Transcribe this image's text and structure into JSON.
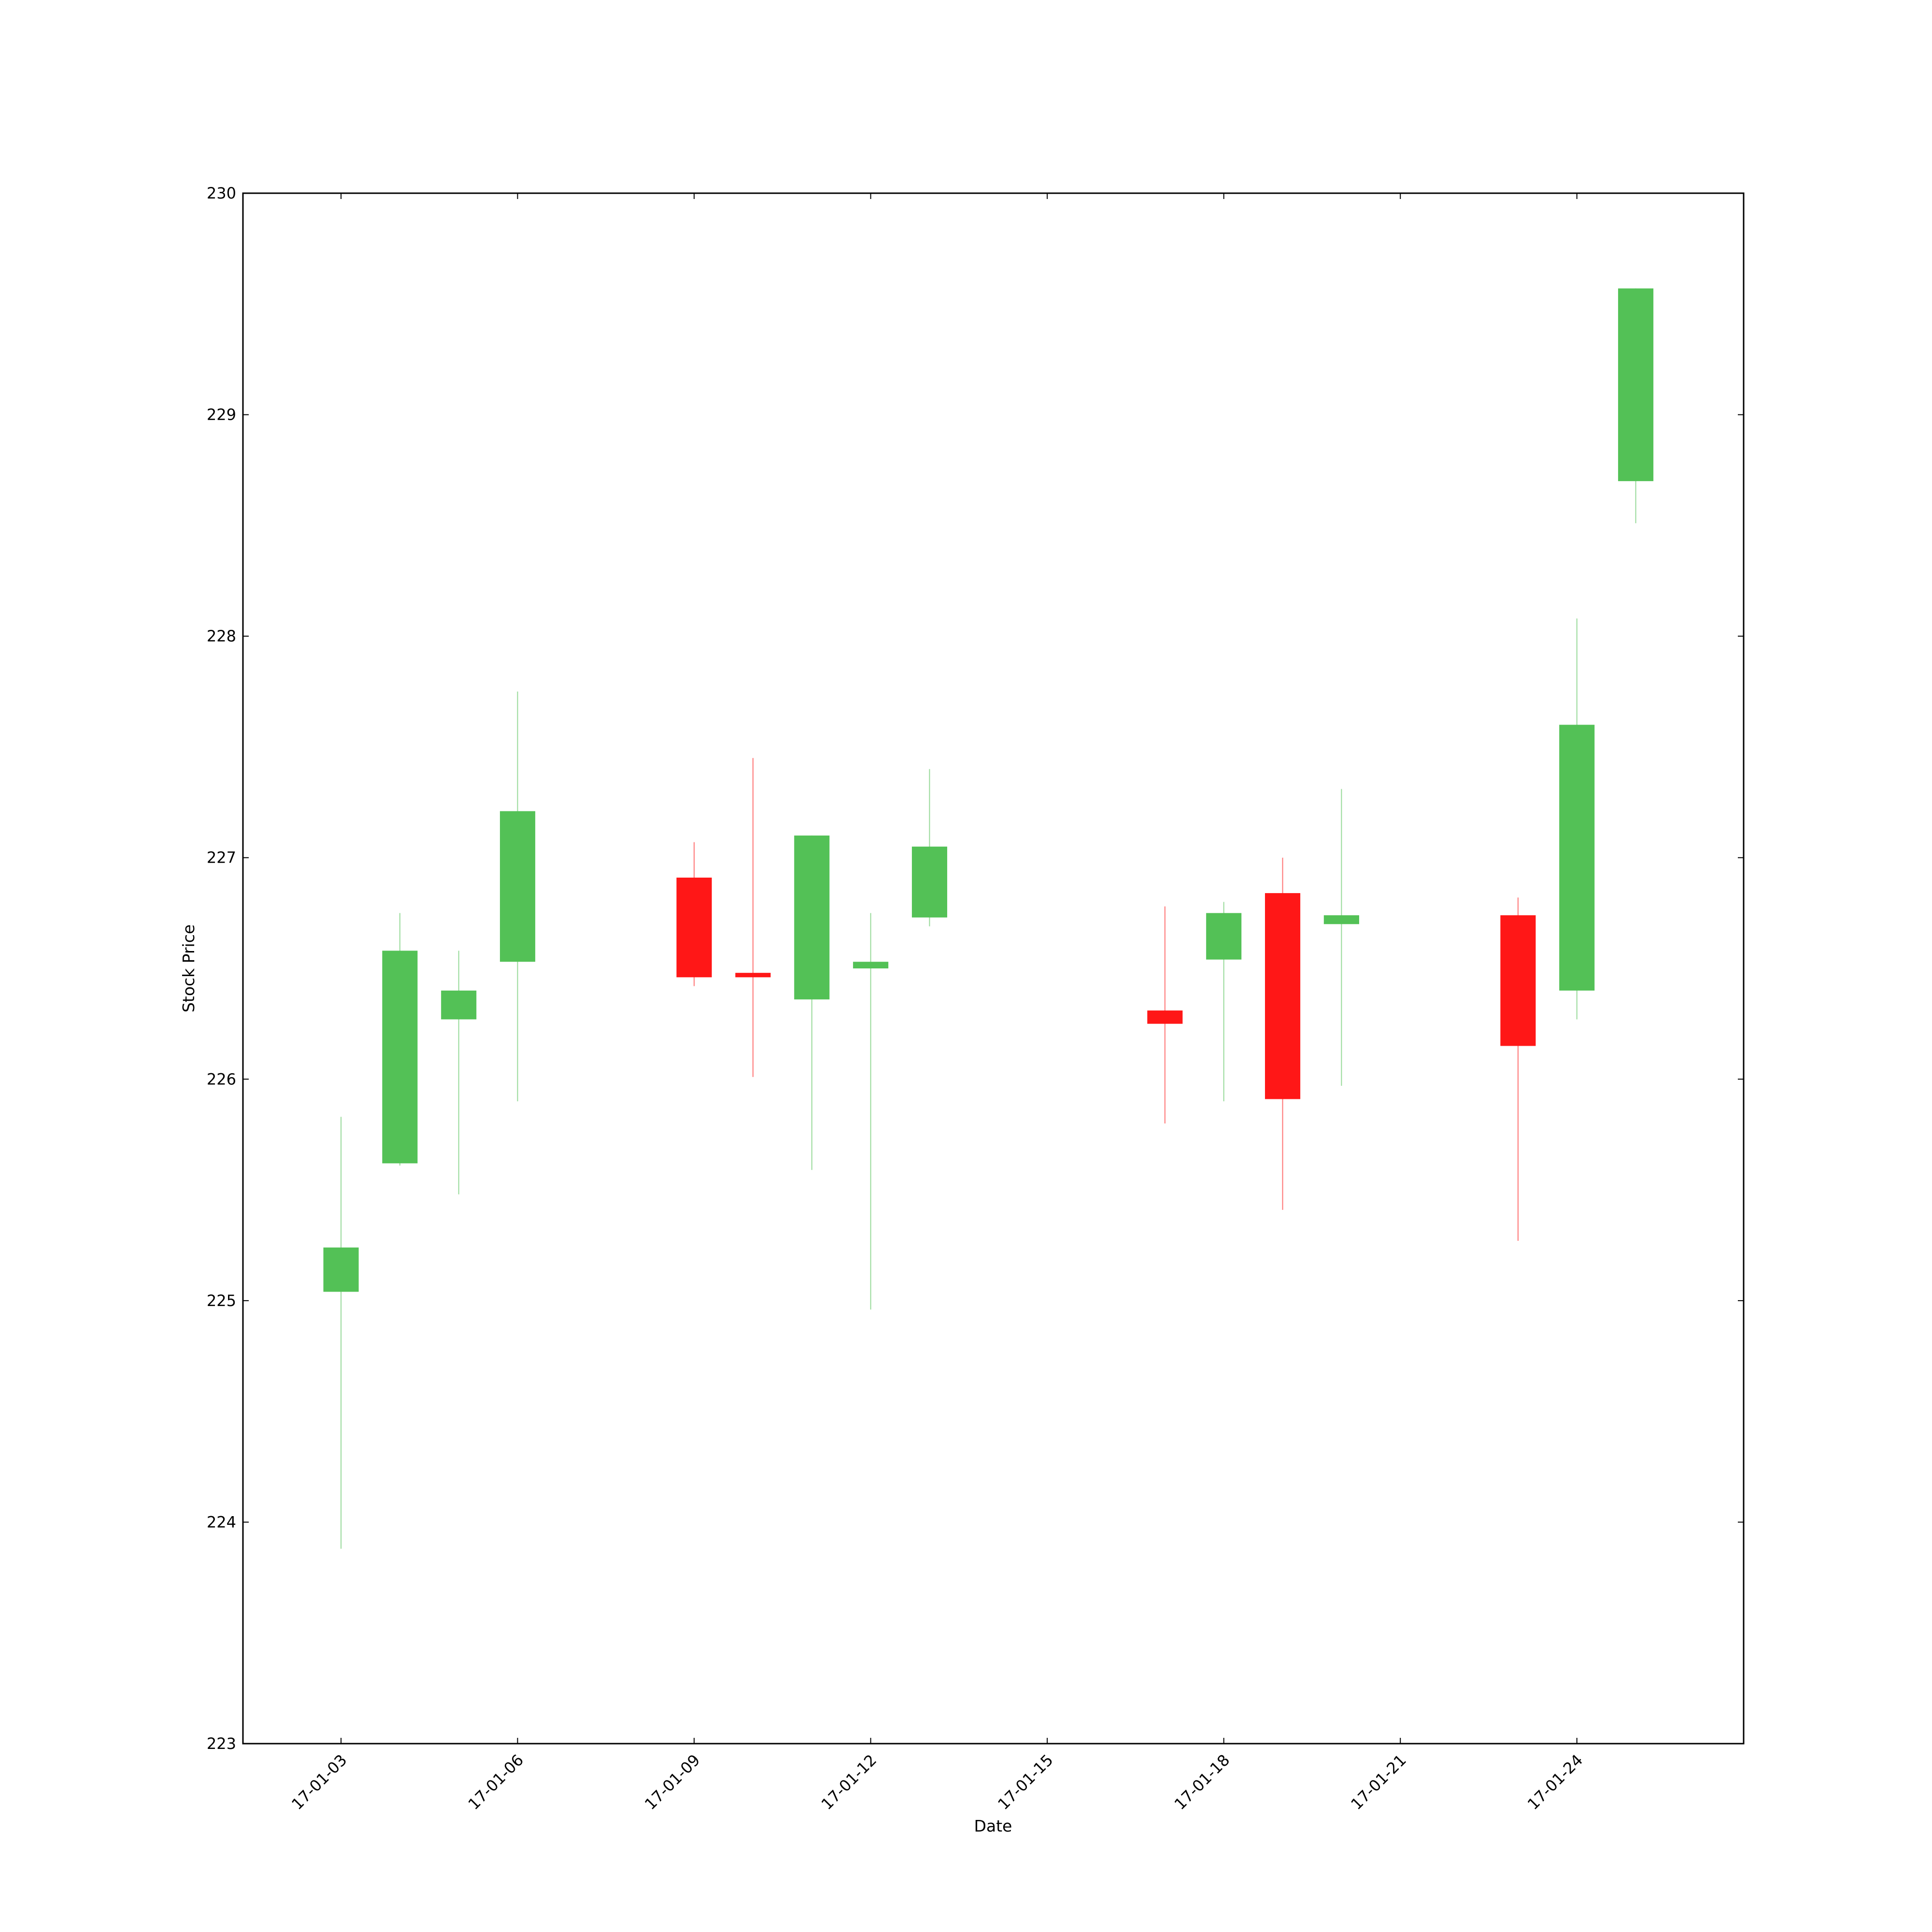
{
  "chart_data": {
    "type": "candlestick",
    "title": "",
    "xlabel": "Date",
    "ylabel": "Stock Price",
    "ylim": [
      223,
      230
    ],
    "xlim": [
      "2017-01-01 08:00",
      "2017-01-26 20:00"
    ],
    "yticks": [
      223,
      224,
      225,
      226,
      227,
      228,
      229,
      230
    ],
    "xticks": [
      {
        "date": "2017-01-03",
        "label": "17-01-03"
      },
      {
        "date": "2017-01-06",
        "label": "17-01-06"
      },
      {
        "date": "2017-01-09",
        "label": "17-01-09"
      },
      {
        "date": "2017-01-12",
        "label": "17-01-12"
      },
      {
        "date": "2017-01-15",
        "label": "17-01-15"
      },
      {
        "date": "2017-01-18",
        "label": "17-01-18"
      },
      {
        "date": "2017-01-21",
        "label": "17-01-21"
      },
      {
        "date": "2017-01-24",
        "label": "17-01-24"
      }
    ],
    "grid": false,
    "colors": {
      "up": "#53c156",
      "down": "#ff1717"
    },
    "candles": [
      {
        "date": "2017-01-03",
        "open": 225.04,
        "high": 225.83,
        "low": 223.88,
        "close": 225.24
      },
      {
        "date": "2017-01-04",
        "open": 225.62,
        "high": 226.75,
        "low": 225.61,
        "close": 226.58
      },
      {
        "date": "2017-01-05",
        "open": 226.27,
        "high": 226.58,
        "low": 225.48,
        "close": 226.4
      },
      {
        "date": "2017-01-06",
        "open": 226.53,
        "high": 227.75,
        "low": 225.9,
        "close": 227.21
      },
      {
        "date": "2017-01-09",
        "open": 226.91,
        "high": 227.07,
        "low": 226.42,
        "close": 226.46
      },
      {
        "date": "2017-01-10",
        "open": 226.48,
        "high": 227.45,
        "low": 226.01,
        "close": 226.46
      },
      {
        "date": "2017-01-11",
        "open": 226.36,
        "high": 227.1,
        "low": 225.59,
        "close": 227.1
      },
      {
        "date": "2017-01-12",
        "open": 226.5,
        "high": 226.75,
        "low": 224.96,
        "close": 226.53
      },
      {
        "date": "2017-01-13",
        "open": 226.73,
        "high": 227.4,
        "low": 226.69,
        "close": 227.05
      },
      {
        "date": "2017-01-17",
        "open": 226.31,
        "high": 226.78,
        "low": 225.8,
        "close": 226.25
      },
      {
        "date": "2017-01-18",
        "open": 226.54,
        "high": 226.8,
        "low": 225.9,
        "close": 226.75
      },
      {
        "date": "2017-01-19",
        "open": 226.84,
        "high": 227.0,
        "low": 225.41,
        "close": 225.91
      },
      {
        "date": "2017-01-20",
        "open": 226.7,
        "high": 227.31,
        "low": 225.97,
        "close": 226.74
      },
      {
        "date": "2017-01-23",
        "open": 226.74,
        "high": 226.82,
        "low": 225.27,
        "close": 226.15
      },
      {
        "date": "2017-01-24",
        "open": 226.4,
        "high": 228.08,
        "low": 226.27,
        "close": 227.6
      },
      {
        "date": "2017-01-25",
        "open": 228.7,
        "high": 229.57,
        "low": 228.51,
        "close": 229.57
      }
    ]
  }
}
